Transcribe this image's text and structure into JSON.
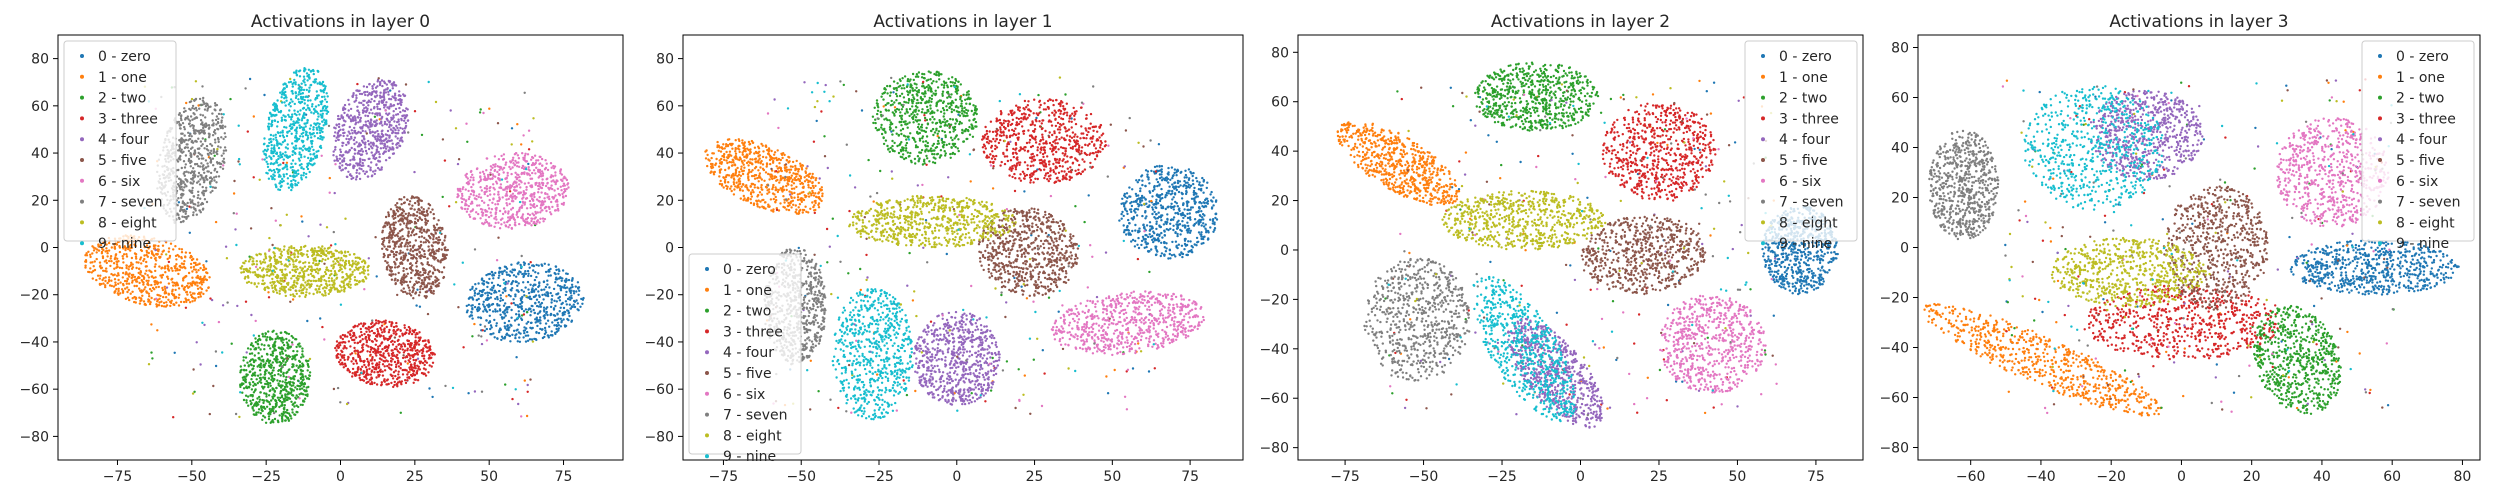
{
  "chart_data": [
    {
      "type": "scatter",
      "title": "Activations in layer 0",
      "xlim": [
        -95,
        95
      ],
      "ylim": [
        -90,
        90
      ],
      "xticks": [
        -75,
        -50,
        -25,
        0,
        25,
        50,
        75
      ],
      "yticks": [
        -80,
        -60,
        -40,
        -20,
        0,
        20,
        40,
        60,
        80
      ],
      "legend": "upper-left",
      "series": [
        {
          "name": "0 - zero",
          "color": "#1f77b4",
          "cx": 62,
          "cy": -23,
          "rx": 20,
          "ry": 17,
          "rot": 15
        },
        {
          "name": "1 - one",
          "color": "#ff7f0e",
          "cx": -65,
          "cy": -10,
          "rx": 22,
          "ry": 14,
          "rot": -20
        },
        {
          "name": "2 - two",
          "color": "#2ca02c",
          "cx": -22,
          "cy": -55,
          "rx": 12,
          "ry": 20,
          "rot": 0
        },
        {
          "name": "3 - three",
          "color": "#d62728",
          "cx": 15,
          "cy": -45,
          "rx": 17,
          "ry": 14,
          "rot": -15
        },
        {
          "name": "4 - four",
          "color": "#9467bd",
          "cx": 10,
          "cy": 50,
          "rx": 12,
          "ry": 22,
          "rot": -15
        },
        {
          "name": "5 - five",
          "color": "#8c564b",
          "cx": 25,
          "cy": 0,
          "rx": 11,
          "ry": 22,
          "rot": 5
        },
        {
          "name": "6 - six",
          "color": "#e377c2",
          "cx": 58,
          "cy": 24,
          "rx": 19,
          "ry": 16,
          "rot": 10
        },
        {
          "name": "7 - seven",
          "color": "#7f7f7f",
          "cx": -50,
          "cy": 37,
          "rx": 11,
          "ry": 27,
          "rot": -10
        },
        {
          "name": "8 - eight",
          "color": "#bcbd22",
          "cx": -12,
          "cy": -10,
          "rx": 22,
          "ry": 11,
          "rot": 0
        },
        {
          "name": "9 - nine",
          "color": "#17becf",
          "cx": -15,
          "cy": 50,
          "rx": 10,
          "ry": 27,
          "rot": -10
        }
      ]
    },
    {
      "type": "scatter",
      "title": "Activations in layer 1",
      "xlim": [
        -88,
        92
      ],
      "ylim": [
        -90,
        90
      ],
      "xticks": [
        -75,
        -50,
        -25,
        0,
        25,
        50,
        75
      ],
      "yticks": [
        -80,
        -60,
        -40,
        -20,
        0,
        20,
        40,
        60,
        80
      ],
      "legend": "lower-left",
      "series": [
        {
          "name": "0 - zero",
          "color": "#1f77b4",
          "cx": 68,
          "cy": 15,
          "rx": 16,
          "ry": 20,
          "rot": 0
        },
        {
          "name": "1 - one",
          "color": "#ff7f0e",
          "cx": -62,
          "cy": 30,
          "rx": 22,
          "ry": 12,
          "rot": -35
        },
        {
          "name": "2 - two",
          "color": "#2ca02c",
          "cx": -10,
          "cy": 55,
          "rx": 17,
          "ry": 20,
          "rot": 0
        },
        {
          "name": "3 - three",
          "color": "#d62728",
          "cx": 28,
          "cy": 45,
          "rx": 20,
          "ry": 18,
          "rot": 0
        },
        {
          "name": "4 - four",
          "color": "#9467bd",
          "cx": 0,
          "cy": -47,
          "rx": 14,
          "ry": 20,
          "rot": 0
        },
        {
          "name": "5 - five",
          "color": "#8c564b",
          "cx": 23,
          "cy": -2,
          "rx": 16,
          "ry": 19,
          "rot": 10
        },
        {
          "name": "6 - six",
          "color": "#e377c2",
          "cx": 55,
          "cy": -32,
          "rx": 25,
          "ry": 13,
          "rot": 10
        },
        {
          "name": "7 - seven",
          "color": "#7f7f7f",
          "cx": -52,
          "cy": -25,
          "rx": 10,
          "ry": 25,
          "rot": 0
        },
        {
          "name": "8 - eight",
          "color": "#bcbd22",
          "cx": -8,
          "cy": 11,
          "rx": 27,
          "ry": 11,
          "rot": 0
        },
        {
          "name": "9 - nine",
          "color": "#17becf",
          "cx": -27,
          "cy": -45,
          "rx": 13,
          "ry": 28,
          "rot": 0
        }
      ]
    },
    {
      "type": "scatter",
      "title": "Activations in layer 2",
      "xlim": [
        -90,
        90
      ],
      "ylim": [
        -85,
        87
      ],
      "xticks": [
        -75,
        -50,
        -25,
        0,
        25,
        50,
        75
      ],
      "yticks": [
        -80,
        -60,
        -40,
        -20,
        0,
        20,
        40,
        60,
        80
      ],
      "legend": "upper-right",
      "series": [
        {
          "name": "0 - zero",
          "color": "#1f77b4",
          "cx": 70,
          "cy": 0,
          "rx": 12,
          "ry": 18,
          "rot": 0
        },
        {
          "name": "1 - one",
          "color": "#ff7f0e",
          "cx": -58,
          "cy": 35,
          "rx": 24,
          "ry": 10,
          "rot": -40
        },
        {
          "name": "2 - two",
          "color": "#2ca02c",
          "cx": -14,
          "cy": 62,
          "rx": 20,
          "ry": 14,
          "rot": 0
        },
        {
          "name": "3 - three",
          "color": "#d62728",
          "cx": 25,
          "cy": 40,
          "rx": 18,
          "ry": 20,
          "rot": 0
        },
        {
          "name": "4 - four",
          "color": "#9467bd",
          "cx": -8,
          "cy": -50,
          "rx": 10,
          "ry": 25,
          "rot": 30
        },
        {
          "name": "5 - five",
          "color": "#8c564b",
          "cx": 20,
          "cy": -2,
          "rx": 20,
          "ry": 16,
          "rot": 10
        },
        {
          "name": "6 - six",
          "color": "#e377c2",
          "cx": 42,
          "cy": -38,
          "rx": 17,
          "ry": 20,
          "rot": 0
        },
        {
          "name": "7 - seven",
          "color": "#7f7f7f",
          "cx": -52,
          "cy": -28,
          "rx": 17,
          "ry": 25,
          "rot": 0
        },
        {
          "name": "8 - eight",
          "color": "#bcbd22",
          "cx": -18,
          "cy": 12,
          "rx": 26,
          "ry": 12,
          "rot": 0
        },
        {
          "name": "9 - nine",
          "color": "#17becf",
          "cx": -18,
          "cy": -40,
          "rx": 11,
          "ry": 32,
          "rot": 25
        }
      ]
    },
    {
      "type": "scatter",
      "title": "Activations in layer 3",
      "xlim": [
        -75,
        85
      ],
      "ylim": [
        -85,
        85
      ],
      "xticks": [
        -60,
        -40,
        -20,
        0,
        20,
        40,
        60,
        80
      ],
      "yticks": [
        -80,
        -60,
        -40,
        -20,
        0,
        20,
        40,
        60,
        80
      ],
      "legend": "upper-right",
      "series": [
        {
          "name": "0 - zero",
          "color": "#1f77b4",
          "cx": 55,
          "cy": -8,
          "rx": 24,
          "ry": 11,
          "rot": 0
        },
        {
          "name": "1 - one",
          "color": "#ff7f0e",
          "cx": -40,
          "cy": -45,
          "rx": 40,
          "ry": 9,
          "rot": -32
        },
        {
          "name": "2 - two",
          "color": "#2ca02c",
          "cx": 33,
          "cy": -45,
          "rx": 12,
          "ry": 22,
          "rot": 10
        },
        {
          "name": "3 - three",
          "color": "#d62728",
          "cx": 0,
          "cy": -30,
          "rx": 28,
          "ry": 15,
          "rot": 0
        },
        {
          "name": "4 - four",
          "color": "#9467bd",
          "cx": -10,
          "cy": 45,
          "rx": 16,
          "ry": 18,
          "rot": 0
        },
        {
          "name": "5 - five",
          "color": "#8c564b",
          "cx": 10,
          "cy": 0,
          "rx": 15,
          "ry": 25,
          "rot": 0
        },
        {
          "name": "6 - six",
          "color": "#e377c2",
          "cx": 43,
          "cy": 30,
          "rx": 16,
          "ry": 22,
          "rot": 0
        },
        {
          "name": "7 - seven",
          "color": "#7f7f7f",
          "cx": -62,
          "cy": 25,
          "rx": 10,
          "ry": 22,
          "rot": 0
        },
        {
          "name": "8 - eight",
          "color": "#bcbd22",
          "cx": -15,
          "cy": -10,
          "rx": 22,
          "ry": 14,
          "rot": 0
        },
        {
          "name": "9 - nine",
          "color": "#17becf",
          "cx": -25,
          "cy": 40,
          "rx": 20,
          "ry": 25,
          "rot": 0
        }
      ]
    }
  ]
}
